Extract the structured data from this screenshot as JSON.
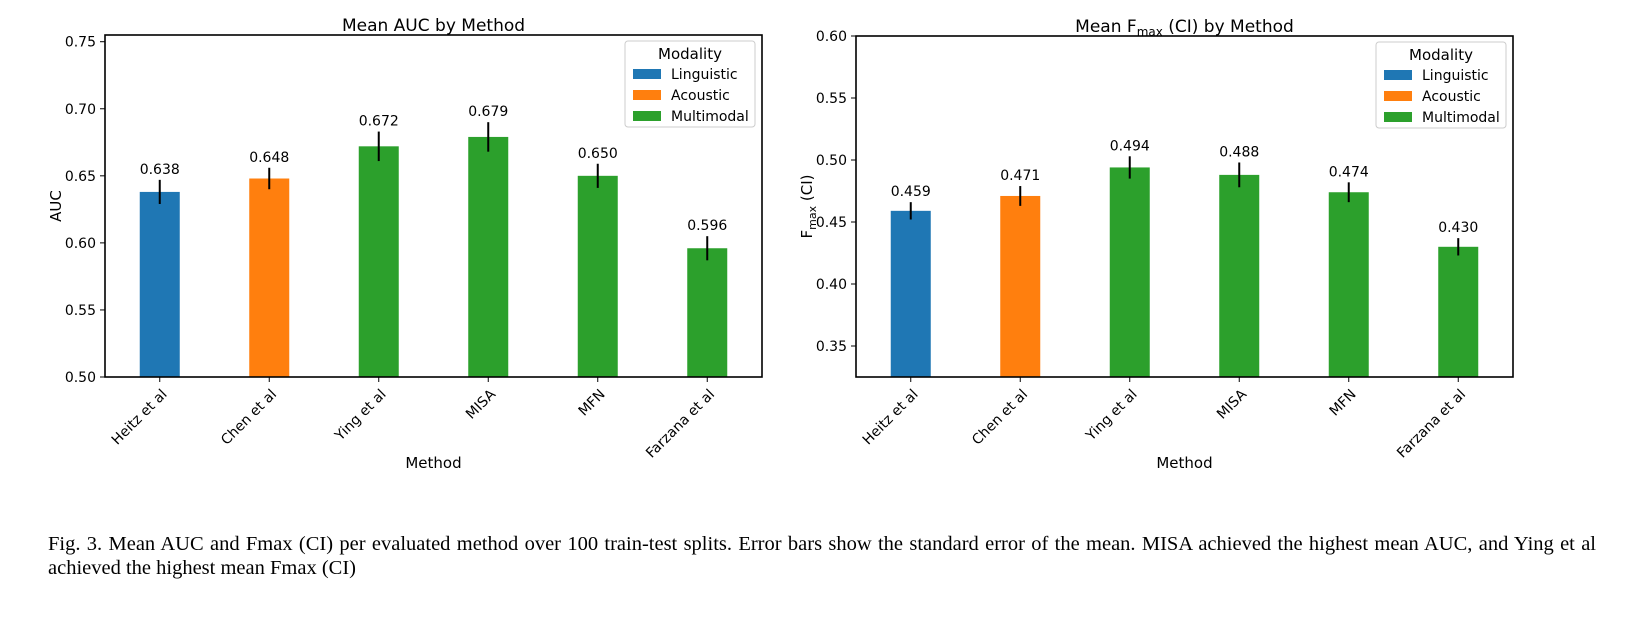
{
  "caption": "Fig. 3.  Mean AUC and Fmax (CI) per evaluated method over 100 train-test splits. Error bars show the standard error of the mean. MISA achieved the highest mean AUC, and Ying et al achieved the highest mean Fmax (CI)",
  "colors": {
    "Linguistic": "#1f77b4",
    "Acoustic": "#ff7f0e",
    "Multimodal": "#2ca02c"
  },
  "chart_data": [
    {
      "type": "bar",
      "title": "Mean AUC by Method",
      "xlabel": "Method",
      "ylabel": "AUC",
      "ylim": [
        0.5,
        0.755
      ],
      "yticks": [
        "0.50",
        "0.55",
        "0.60",
        "0.65",
        "0.70",
        "0.75"
      ],
      "categories": [
        "Heitz et al",
        "Chen et al",
        "Ying et al",
        "MISA",
        "MFN",
        "Farzana et al"
      ],
      "values": [
        0.638,
        0.648,
        0.672,
        0.679,
        0.65,
        0.596
      ],
      "value_labels": [
        "0.638",
        "0.648",
        "0.672",
        "0.679",
        "0.650",
        "0.596"
      ],
      "errors": [
        0.009,
        0.008,
        0.011,
        0.011,
        0.009,
        0.009
      ],
      "modality": [
        "Linguistic",
        "Acoustic",
        "Multimodal",
        "Multimodal",
        "Multimodal",
        "Multimodal"
      ],
      "legend": {
        "title": "Modality",
        "entries": [
          "Linguistic",
          "Acoustic",
          "Multimodal"
        ],
        "position": "top-right"
      },
      "grid": false
    },
    {
      "type": "bar",
      "title": "Mean Fmax (CI) by Method",
      "title_parts": {
        "pre": "Mean F",
        "sub": "max",
        "post": " (CI) by Method"
      },
      "xlabel": "Method",
      "ylabel": "Fmax (CI)",
      "ylabel_parts": {
        "pre": "F",
        "sub": "max",
        "post": " (CI)"
      },
      "ylim": [
        0.325,
        0.6
      ],
      "yticks": [
        "0.35",
        "0.40",
        "0.45",
        "0.50",
        "0.55",
        "0.60"
      ],
      "categories": [
        "Heitz et al",
        "Chen et al",
        "Ying et al",
        "MISA",
        "MFN",
        "Farzana et al"
      ],
      "values": [
        0.459,
        0.471,
        0.494,
        0.488,
        0.474,
        0.43
      ],
      "value_labels": [
        "0.459",
        "0.471",
        "0.494",
        "0.488",
        "0.474",
        "0.430"
      ],
      "errors": [
        0.007,
        0.008,
        0.009,
        0.01,
        0.008,
        0.007
      ],
      "modality": [
        "Linguistic",
        "Acoustic",
        "Multimodal",
        "Multimodal",
        "Multimodal",
        "Multimodal"
      ],
      "legend": {
        "title": "Modality",
        "entries": [
          "Linguistic",
          "Acoustic",
          "Multimodal"
        ],
        "position": "top-right"
      },
      "grid": false
    }
  ]
}
